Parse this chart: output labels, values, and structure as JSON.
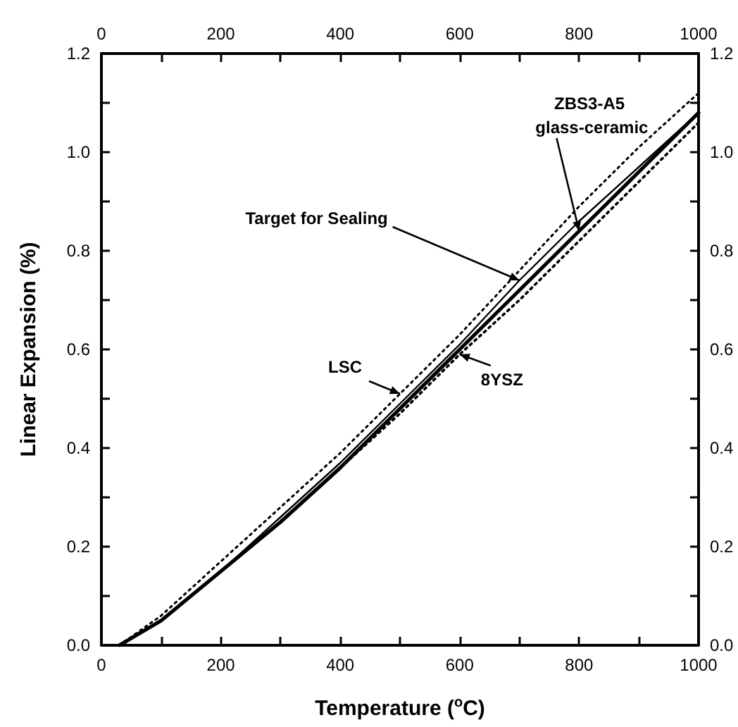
{
  "chart_data": {
    "type": "line",
    "xlabel": "Temperature ($^{o}$C)",
    "ylabel": "Linear Expansion (%)",
    "xlim": [
      0,
      1000
    ],
    "xticks": [
      0,
      {
        "value": 100,
        "label": null
      },
      200,
      {
        "value": 300,
        "label": null
      },
      400,
      {
        "value": 500,
        "label": null
      },
      600,
      {
        "value": 700,
        "label": null
      },
      800,
      {
        "value": 900,
        "label": null
      },
      1000
    ],
    "x2lim": [
      0,
      1000
    ],
    "x2ticks": [
      0,
      {
        "value": 100,
        "label": null
      },
      200,
      {
        "value": 300,
        "label": null
      },
      400,
      {
        "value": 500,
        "label": null
      },
      600,
      {
        "value": 700,
        "label": null
      },
      800,
      {
        "value": 900,
        "label": null
      },
      1000
    ],
    "ylim": [
      0,
      1.2
    ],
    "yticks": [
      {
        "value": 0,
        "label": "0.0"
      },
      {
        "value": 0.1,
        "label": null
      },
      {
        "value": 0.2,
        "label": "0.2"
      },
      {
        "value": 0.3,
        "label": null
      },
      {
        "value": 0.4,
        "label": "0.4"
      },
      {
        "value": 0.5,
        "label": null
      },
      {
        "value": 0.6,
        "label": "0.6"
      },
      {
        "value": 0.7,
        "label": null
      },
      {
        "value": 0.8,
        "label": "0.8"
      },
      {
        "value": 0.9,
        "label": null
      },
      {
        "value": 1.0,
        "label": "1.0"
      },
      {
        "value": 1.1,
        "label": null
      },
      {
        "value": 1.2,
        "label": "1.2"
      }
    ],
    "y2lim": [
      0,
      1.2
    ],
    "y2ticks": [
      {
        "value": 0,
        "label": "0.0"
      },
      {
        "value": 0.1,
        "label": null
      },
      {
        "value": 0.2,
        "label": "0.2"
      },
      {
        "value": 0.3,
        "label": null
      },
      {
        "value": 0.4,
        "label": "0.4"
      },
      {
        "value": 0.5,
        "label": null
      },
      {
        "value": 0.6,
        "label": "0.6"
      },
      {
        "value": 0.7,
        "label": null
      },
      {
        "value": 0.8,
        "label": "0.8"
      },
      {
        "value": 0.9,
        "label": null
      },
      {
        "value": 1.0,
        "label": "1.0"
      },
      {
        "value": 1.1,
        "label": null
      },
      {
        "value": 1.2,
        "label": "1.2"
      }
    ],
    "grid": false,
    "marker": "none",
    "x": [
      30,
      100,
      200,
      300,
      400,
      500,
      600,
      700,
      800,
      900,
      1000
    ],
    "series": [
      {
        "color": "#000000",
        "line_style": "dotted",
        "values": [
          0,
          0.06,
          0.17,
          0.28,
          0.39,
          0.51,
          0.63,
          0.76,
          0.89,
          1.01,
          1.12
        ]
      },
      {
        "color": "#000000",
        "line_style": "solid",
        "values": [
          0,
          0.05,
          0.15,
          0.26,
          0.37,
          0.49,
          0.61,
          0.74,
          0.86,
          0.97,
          1.08
        ]
      },
      {
        "color": "#000000",
        "line_style": "solid",
        "values": [
          0,
          0.05,
          0.15,
          0.25,
          0.36,
          0.48,
          0.6,
          0.72,
          0.84,
          0.96,
          1.08
        ]
      },
      {
        "color": "#000000",
        "line_style": "dotted",
        "values": [
          0,
          0.05,
          0.15,
          0.25,
          0.36,
          0.47,
          0.59,
          0.7,
          0.82,
          0.94,
          1.06
        ]
      }
    ],
    "annotations": [
      {
        "text": "LSC",
        "x": 500,
        "y": 0.51
      },
      {
        "text": "8YSZ",
        "x": 600,
        "y": 0.59
      },
      {
        "text": "Target for Sealing",
        "x": 700,
        "y": 0.74
      },
      {
        "text": "ZBS3-A5 glass-ceramic",
        "x": 800,
        "y": 0.84
      }
    ]
  }
}
